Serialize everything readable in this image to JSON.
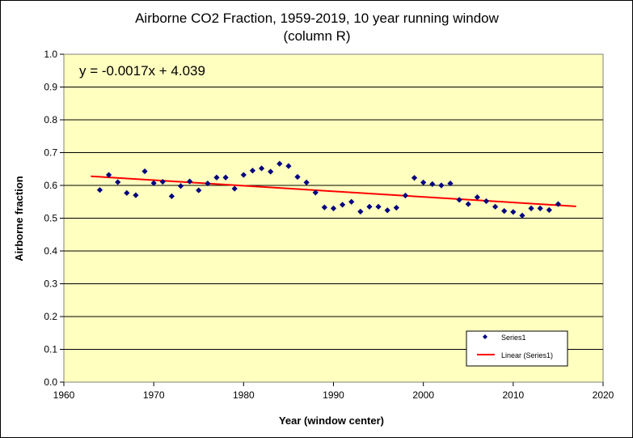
{
  "chart_data": {
    "type": "scatter",
    "title_line1": "Airborne CO2 Fraction, 1959-2019, 10 year running window",
    "title_line2": "(column R)",
    "xlabel": "Year (window center)",
    "ylabel": "Airborne fraction",
    "xlim": [
      1960,
      2020
    ],
    "ylim": [
      0.0,
      1.0
    ],
    "x_ticks": [
      1960,
      1970,
      1980,
      1990,
      2000,
      2010,
      2020
    ],
    "y_ticks": [
      "0.0",
      "0.1",
      "0.2",
      "0.3",
      "0.4",
      "0.5",
      "0.6",
      "0.7",
      "0.8",
      "0.9",
      "1.0"
    ],
    "grid": "horizontal major gridlines",
    "plot_background": "#FFFFC0",
    "legend_placement": "bottom-right inside plot",
    "annotation": "y = -0.0017x + 4.039",
    "series": [
      {
        "name": "Series1",
        "marker": "diamond",
        "color": "#000080",
        "x": [
          1964,
          1965,
          1966,
          1967,
          1968,
          1969,
          1970,
          1971,
          1972,
          1973,
          1974,
          1975,
          1976,
          1977,
          1978,
          1979,
          1980,
          1981,
          1982,
          1983,
          1984,
          1985,
          1986,
          1987,
          1988,
          1989,
          1990,
          1991,
          1992,
          1993,
          1994,
          1995,
          1996,
          1997,
          1998,
          1999,
          2000,
          2001,
          2002,
          2003,
          2004,
          2005,
          2006,
          2007,
          2008,
          2009,
          2010,
          2011,
          2012,
          2013,
          2014,
          2015
        ],
        "y": [
          0.586,
          0.632,
          0.61,
          0.577,
          0.57,
          0.643,
          0.607,
          0.611,
          0.567,
          0.598,
          0.612,
          0.585,
          0.606,
          0.624,
          0.624,
          0.59,
          0.632,
          0.645,
          0.652,
          0.642,
          0.666,
          0.659,
          0.626,
          0.609,
          0.578,
          0.533,
          0.53,
          0.541,
          0.55,
          0.52,
          0.535,
          0.535,
          0.524,
          0.532,
          0.569,
          0.623,
          0.609,
          0.604,
          0.6,
          0.606,
          0.556,
          0.543,
          0.564,
          0.552,
          0.535,
          0.522,
          0.519,
          0.508,
          0.53,
          0.53,
          0.525,
          0.543
        ]
      },
      {
        "name": "Linear (Series1)",
        "type": "line",
        "color": "#FF0000",
        "x": [
          1963,
          2017
        ],
        "y": [
          0.6279,
          0.5361
        ]
      }
    ]
  }
}
